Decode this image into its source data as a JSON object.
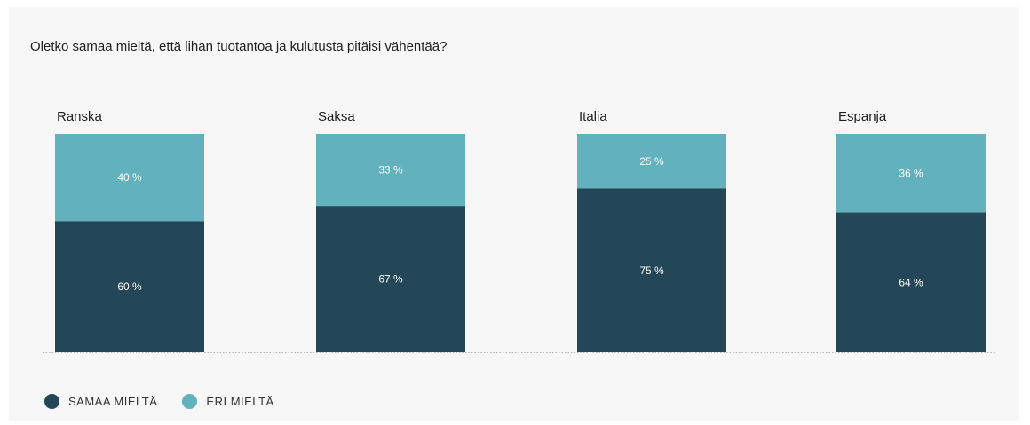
{
  "title": "Oletko samaa mieltä, että lihan tuotantoa ja kulutusta pitäisi vähentää?",
  "colors": {
    "agree": "#234757",
    "disagree": "#63b1bd",
    "label": "#ffffff",
    "category": "#1e1e1e",
    "baseline": "#b5b5b5"
  },
  "legend": {
    "agree_label": "SAMAA MIELTÄ",
    "disagree_label": "ERI MIELTÄ"
  },
  "chart_data": {
    "type": "bar",
    "stacked": true,
    "categories": [
      "Ranska",
      "Saksa",
      "Italia",
      "Espanja"
    ],
    "series": [
      {
        "name": "SAMAA MIELTÄ",
        "values": [
          60,
          67,
          75,
          64
        ],
        "labels": [
          "60 %",
          "67 %",
          "75 %",
          "64 %"
        ]
      },
      {
        "name": "ERI MIELTÄ",
        "values": [
          40,
          33,
          25,
          36
        ],
        "labels": [
          "40 %",
          "33 %",
          "25 %",
          "36 %"
        ]
      }
    ],
    "title": "Oletko samaa mieltä, että lihan tuotantoa ja kulutusta pitäisi vähentää?",
    "ylim": [
      0,
      100
    ],
    "grid": false,
    "legend_position": "bottom-left"
  }
}
